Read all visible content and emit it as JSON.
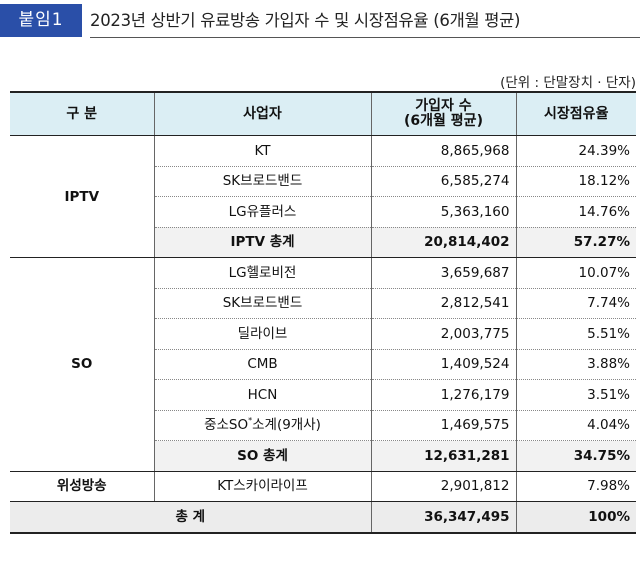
{
  "header": {
    "badge": "붙임1",
    "title": "2023년 상반기 유료방송 가입자 수 및 시장점유율 (6개월 평균)"
  },
  "unit_note": "(단위 : 단말장치 · 단자)",
  "table": {
    "headers": {
      "category": "구 분",
      "operator": "사업자",
      "subscribers_line1": "가입자 수",
      "subscribers_line2": "(6개월 평균)",
      "share": "시장점유율"
    },
    "iptv": {
      "label": "IPTV",
      "rows": [
        {
          "name": "KT",
          "subs": "8,865,968",
          "share": "24.39%"
        },
        {
          "name": "SK브로드밴드",
          "subs": "6,585,274",
          "share": "18.12%"
        },
        {
          "name": "LG유플러스",
          "subs": "5,363,160",
          "share": "14.76%"
        }
      ],
      "subtotal": {
        "name": "IPTV 총계",
        "subs": "20,814,402",
        "share": "57.27%"
      }
    },
    "so": {
      "label": "SO",
      "rows": [
        {
          "name": "LG헬로비전",
          "subs": "3,659,687",
          "share": "10.07%"
        },
        {
          "name": "SK브로드밴드",
          "subs": "2,812,541",
          "share": "7.74%"
        },
        {
          "name": "딜라이브",
          "subs": "2,003,775",
          "share": "5.51%"
        },
        {
          "name": "CMB",
          "subs": "1,409,524",
          "share": "3.88%"
        },
        {
          "name": "HCN",
          "subs": "1,276,179",
          "share": "3.51%"
        }
      ],
      "smallco": {
        "name_prefix": "중소SO",
        "name_sup": "*",
        "name_suffix": "소계(9개사)",
        "subs": "1,469,575",
        "share": "4.04%"
      },
      "subtotal": {
        "name": "SO 총계",
        "subs": "12,631,281",
        "share": "34.75%"
      }
    },
    "satellite": {
      "label": "위성방송",
      "row": {
        "name": "KT스카이라이프",
        "subs": "2,901,812",
        "share": "7.98%"
      }
    },
    "total": {
      "label": "총 계",
      "subs": "36,347,495",
      "share": "100%"
    }
  }
}
